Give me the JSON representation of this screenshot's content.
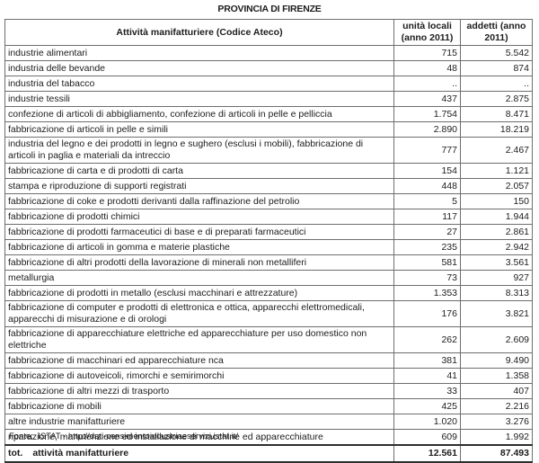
{
  "page": {
    "title": "PROVINCIA DI FIRENZE",
    "source_note": "Fonte:  ISTAT - http://dati-censimentoindustriaeservizi.istat.it/"
  },
  "colors": {
    "background": "#ffffff",
    "text": "#1c1c1c",
    "border_inner": "#6e6e6e",
    "border_outer": "#2e2e2e"
  },
  "table": {
    "headers": {
      "activity": "Attività manifatturiere (Codice Ateco)",
      "local_units_lines": [
        "unità locali",
        "(anno 2011)"
      ],
      "employees_lines": [
        "addetti (anno",
        "2011)"
      ]
    },
    "rows": [
      {
        "label": "industrie alimentari",
        "local_units": "715",
        "employees": "5.542"
      },
      {
        "label": "industria delle bevande",
        "local_units": "48",
        "employees": "874"
      },
      {
        "label": "industria del tabacco",
        "local_units": "..",
        "employees": ".."
      },
      {
        "label": "industrie tessili",
        "local_units": "437",
        "employees": "2.875"
      },
      {
        "label": "confezione di articoli di abbigliamento, confezione di articoli in pelle e pelliccia",
        "local_units": "1.754",
        "employees": "8.471"
      },
      {
        "label": "fabbricazione di articoli in pelle e simili",
        "local_units": "2.890",
        "employees": "18.219"
      },
      {
        "label": "industria del legno e dei prodotti in legno e sughero (esclusi i mobili), fabbricazione di articoli in paglia e materiali da intreccio",
        "local_units": "777",
        "employees": "2.467"
      },
      {
        "label": "fabbricazione di carta e di prodotti di carta",
        "local_units": "154",
        "employees": "1.121"
      },
      {
        "label": "stampa e riproduzione di supporti registrati",
        "local_units": "448",
        "employees": "2.057"
      },
      {
        "label": "fabbricazione di coke e prodotti derivanti dalla raffinazione del petrolio",
        "local_units": "5",
        "employees": "150"
      },
      {
        "label": "fabbricazione di prodotti chimici",
        "local_units": "117",
        "employees": "1.944"
      },
      {
        "label": "fabbricazione di prodotti farmaceutici di base e di preparati farmaceutici",
        "local_units": "27",
        "employees": "2.861"
      },
      {
        "label": "fabbricazione di articoli in gomma e materie plastiche",
        "local_units": "235",
        "employees": "2.942"
      },
      {
        "label": "fabbricazione di altri prodotti della lavorazione di minerali non metalliferi",
        "local_units": "581",
        "employees": "3.561"
      },
      {
        "label": "metallurgia",
        "local_units": "73",
        "employees": "927"
      },
      {
        "label": "fabbricazione di prodotti in metallo (esclusi macchinari e attrezzature)",
        "local_units": "1.353",
        "employees": "8.313"
      },
      {
        "label": "fabbricazione di computer e prodotti di elettronica e ottica, apparecchi elettromedicali, apparecchi di misurazione e di orologi",
        "local_units": "176",
        "employees": "3.821"
      },
      {
        "label": "fabbricazione di apparecchiature elettriche ed apparecchiature per uso domestico non elettriche",
        "local_units": "262",
        "employees": "2.609"
      },
      {
        "label": "fabbricazione di macchinari ed apparecchiature nca",
        "local_units": "381",
        "employees": "9.490"
      },
      {
        "label": "fabbricazione di autoveicoli, rimorchi e semirimorchi",
        "local_units": "41",
        "employees": "1.358"
      },
      {
        "label": "fabbricazione di altri mezzi di trasporto",
        "local_units": "33",
        "employees": "407"
      },
      {
        "label": "fabbricazione di mobili",
        "local_units": "425",
        "employees": "2.216"
      },
      {
        "label": "altre industrie manifatturiere",
        "local_units": "1.020",
        "employees": "3.276"
      },
      {
        "label": "riparazione, manutenzione ed installazione di macchine ed apparecchiature",
        "local_units": "609",
        "employees": "1.992"
      }
    ],
    "total": {
      "label_prefix": "tot.",
      "label_text": "attività manifatturiere",
      "local_units": "12.561",
      "employees": "87.493"
    }
  }
}
